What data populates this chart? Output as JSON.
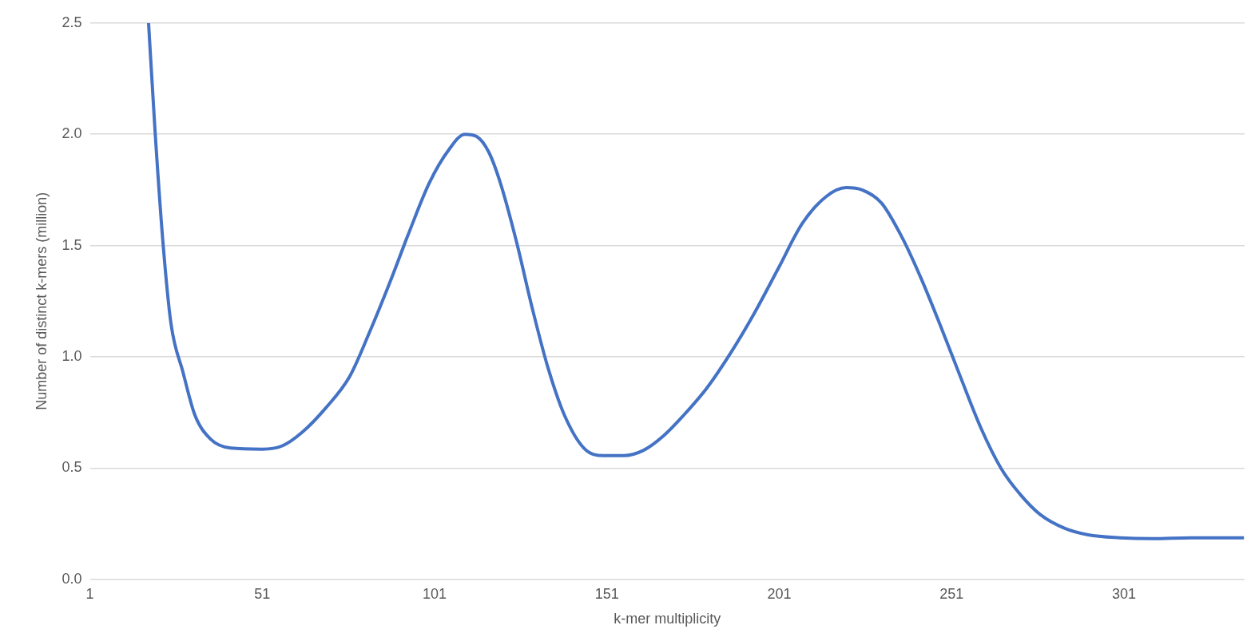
{
  "chart_data": {
    "type": "line",
    "xlabel": "k-mer multiplicity",
    "ylabel": "Number of distinct k-mers (million)",
    "xlim": [
      1,
      336
    ],
    "xticks": [
      1,
      51,
      101,
      151,
      201,
      251,
      301
    ],
    "ylim": [
      0,
      2.5
    ],
    "yticks": [
      {
        "value": 0,
        "label": "0.0"
      },
      {
        "value": 0.5,
        "label": "0.5"
      },
      {
        "value": 1,
        "label": "1.0"
      },
      {
        "value": 1.5,
        "label": "1.5"
      },
      {
        "value": 2,
        "label": "2.0"
      },
      {
        "value": 2.5,
        "label": "2.5"
      }
    ],
    "grid": "y",
    "legend": false,
    "marker": "none",
    "line_style": "solid",
    "series": [
      {
        "color": "#4472c4",
        "x": [
          18,
          19.9,
          22.2,
          24.5,
          28,
          31.4,
          36,
          41.8,
          51,
          56.8,
          62.5,
          69.4,
          76.3,
          82.1,
          87.9,
          93.6,
          99.4,
          105.1,
          109.8,
          113.2,
          116.7,
          120.1,
          124.7,
          129.3,
          133.9,
          138.6,
          144.3,
          150.1,
          155.8,
          161.6,
          167.4,
          173.1,
          180,
          187,
          193.9,
          200.8,
          207.7,
          214.6,
          220.4,
          225,
          230.7,
          236.5,
          242.2,
          248,
          253.8,
          259.5,
          265.3,
          271,
          276.8,
          283.7,
          290.6,
          299.8,
          309,
          320.6,
          335.8
        ],
        "values": [
          2.5,
          2.01,
          1.51,
          1.15,
          0.93,
          0.74,
          0.63,
          0.59,
          0.585,
          0.6,
          0.66,
          0.77,
          0.91,
          1.11,
          1.33,
          1.56,
          1.78,
          1.93,
          2.0,
          1.99,
          1.92,
          1.78,
          1.52,
          1.22,
          0.95,
          0.74,
          0.59,
          0.556,
          0.556,
          0.58,
          0.645,
          0.735,
          0.86,
          1.02,
          1.2,
          1.4,
          1.6,
          1.72,
          1.76,
          1.75,
          1.69,
          1.54,
          1.35,
          1.13,
          0.9,
          0.68,
          0.5,
          0.38,
          0.29,
          0.23,
          0.2,
          0.187,
          0.183,
          0.187,
          0.187
        ]
      }
    ]
  }
}
